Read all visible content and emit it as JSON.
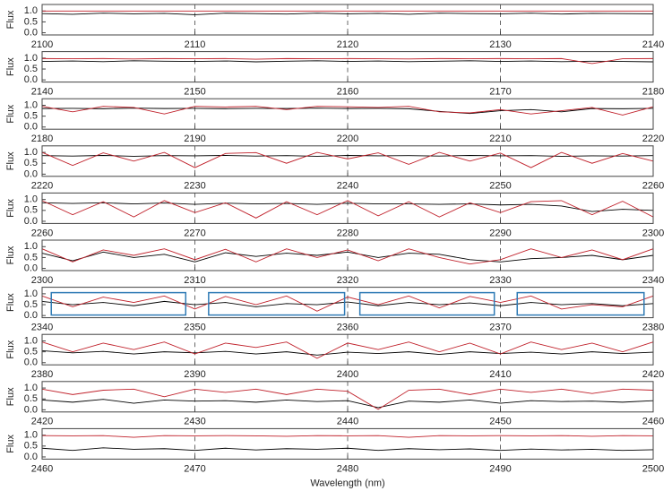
{
  "chart_data": [
    {
      "type": "line",
      "ylabel": "Flux",
      "x": [
        2100,
        2102,
        2104,
        2106,
        2108,
        2110,
        2112,
        2114,
        2116,
        2118,
        2120,
        2122,
        2124,
        2126,
        2128,
        2130,
        2132,
        2134,
        2136,
        2138,
        2140
      ],
      "xlim": [
        2100,
        2140
      ],
      "xticks": [
        2100,
        2110,
        2120,
        2130,
        2140
      ],
      "ylim": [
        -0.1,
        1.3
      ],
      "yticks": [
        {
          "value": 0,
          "label": "0.0"
        },
        {
          "value": 0.5,
          "label": "0.5"
        },
        {
          "value": 1,
          "label": "1.0"
        }
      ],
      "grid": true,
      "series": [
        {
          "color": "#000000",
          "values": [
            0.88,
            0.85,
            0.9,
            0.87,
            0.89,
            0.83,
            0.9,
            0.88,
            0.86,
            0.9,
            0.87,
            0.89,
            0.85,
            0.9,
            0.88,
            0.87,
            0.9,
            0.86,
            0.89,
            0.88,
            0.87
          ]
        },
        {
          "color": "#c0202a",
          "values": [
            1,
            1,
            1,
            1,
            1,
            1,
            1,
            1,
            1,
            1,
            1,
            1,
            1,
            1,
            1,
            1,
            1,
            1,
            1,
            1,
            1
          ]
        }
      ]
    },
    {
      "type": "line",
      "ylabel": "Flux",
      "x": [
        2140,
        2142,
        2144,
        2146,
        2148,
        2150,
        2152,
        2154,
        2156,
        2158,
        2160,
        2162,
        2164,
        2166,
        2168,
        2170,
        2172,
        2174,
        2176,
        2178,
        2180
      ],
      "xlim": [
        2140,
        2180
      ],
      "xticks": [
        2140,
        2150,
        2160,
        2170,
        2180
      ],
      "ylim": [
        -0.1,
        1.3
      ],
      "yticks": [
        {
          "value": 0,
          "label": "0.0"
        },
        {
          "value": 0.5,
          "label": "0.5"
        },
        {
          "value": 1,
          "label": "1.0"
        }
      ],
      "grid": true,
      "series": [
        {
          "color": "#000000",
          "values": [
            0.85,
            0.87,
            0.84,
            0.88,
            0.86,
            0.85,
            0.87,
            0.83,
            0.86,
            0.88,
            0.85,
            0.87,
            0.84,
            0.86,
            0.88,
            0.85,
            0.87,
            0.84,
            0.86,
            0.85,
            0.83
          ]
        },
        {
          "color": "#c0202a",
          "values": [
            0.98,
            0.97,
            0.98,
            0.96,
            0.98,
            0.97,
            0.98,
            0.95,
            0.98,
            0.97,
            0.98,
            0.97,
            0.96,
            0.98,
            0.97,
            0.98,
            0.97,
            0.98,
            0.75,
            0.97,
            0.98
          ]
        }
      ]
    },
    {
      "type": "line",
      "ylabel": "Flux",
      "x": [
        2180,
        2182,
        2184,
        2186,
        2188,
        2190,
        2192,
        2194,
        2196,
        2198,
        2200,
        2202,
        2204,
        2206,
        2208,
        2210,
        2212,
        2214,
        2216,
        2218,
        2220
      ],
      "xlim": [
        2180,
        2220
      ],
      "xticks": [
        2180,
        2190,
        2200,
        2210,
        2220
      ],
      "ylim": [
        -0.1,
        1.3
      ],
      "yticks": [
        {
          "value": 0,
          "label": "0.0"
        },
        {
          "value": 0.5,
          "label": "0.5"
        },
        {
          "value": 1,
          "label": "1.0"
        }
      ],
      "grid": true,
      "series": [
        {
          "color": "#000000",
          "values": [
            0.85,
            0.86,
            0.84,
            0.87,
            0.85,
            0.86,
            0.84,
            0.86,
            0.85,
            0.87,
            0.85,
            0.86,
            0.84,
            0.72,
            0.62,
            0.75,
            0.8,
            0.7,
            0.85,
            0.84,
            0.86
          ]
        },
        {
          "color": "#c0202a",
          "values": [
            0.95,
            0.7,
            0.95,
            0.9,
            0.6,
            0.95,
            0.92,
            0.95,
            0.8,
            0.95,
            0.93,
            0.9,
            0.95,
            0.7,
            0.65,
            0.8,
            0.6,
            0.75,
            0.9,
            0.55,
            0.93
          ]
        }
      ]
    },
    {
      "type": "line",
      "ylabel": "Flux",
      "x": [
        2220,
        2222,
        2224,
        2226,
        2228,
        2230,
        2232,
        2234,
        2236,
        2238,
        2240,
        2242,
        2244,
        2246,
        2248,
        2250,
        2252,
        2254,
        2256,
        2258,
        2260
      ],
      "xlim": [
        2220,
        2260
      ],
      "xticks": [
        2220,
        2230,
        2240,
        2250,
        2260
      ],
      "ylim": [
        -0.1,
        1.3
      ],
      "yticks": [
        {
          "value": 0,
          "label": "0.0"
        },
        {
          "value": 0.5,
          "label": "0.5"
        },
        {
          "value": 1,
          "label": "1.0"
        }
      ],
      "grid": true,
      "series": [
        {
          "color": "#000000",
          "values": [
            0.85,
            0.83,
            0.86,
            0.82,
            0.85,
            0.84,
            0.86,
            0.83,
            0.85,
            0.82,
            0.86,
            0.84,
            0.85,
            0.83,
            0.86,
            0.84,
            0.85,
            0.82,
            0.84,
            0.83,
            0.85
          ]
        },
        {
          "color": "#c0202a",
          "values": [
            1.0,
            0.4,
            0.98,
            0.6,
            1.0,
            0.3,
            0.95,
            0.99,
            0.5,
            1.0,
            0.7,
            0.98,
            0.45,
            1.0,
            0.6,
            0.97,
            0.3,
            1.0,
            0.5,
            0.95,
            0.6
          ]
        }
      ]
    },
    {
      "type": "line",
      "ylabel": "Flux",
      "x": [
        2260,
        2262,
        2264,
        2266,
        2268,
        2270,
        2272,
        2274,
        2276,
        2278,
        2280,
        2282,
        2284,
        2286,
        2288,
        2290,
        2292,
        2294,
        2296,
        2298,
        2300
      ],
      "xlim": [
        2260,
        2300
      ],
      "xticks": [
        2260,
        2270,
        2280,
        2290,
        2300
      ],
      "ylim": [
        -0.1,
        1.3
      ],
      "yticks": [
        {
          "value": 0,
          "label": "0.0"
        },
        {
          "value": 0.5,
          "label": "0.5"
        },
        {
          "value": 1,
          "label": "1.0"
        }
      ],
      "grid": true,
      "series": [
        {
          "color": "#000000",
          "values": [
            0.85,
            0.82,
            0.85,
            0.8,
            0.84,
            0.78,
            0.83,
            0.8,
            0.82,
            0.78,
            0.83,
            0.8,
            0.8,
            0.78,
            0.8,
            0.75,
            0.78,
            0.7,
            0.45,
            0.55,
            0.5
          ]
        },
        {
          "color": "#c0202a",
          "values": [
            0.95,
            0.3,
            0.9,
            0.2,
            0.95,
            0.4,
            0.85,
            0.15,
            0.9,
            0.3,
            0.95,
            0.25,
            0.9,
            0.2,
            0.85,
            0.4,
            0.9,
            0.95,
            0.3,
            0.92,
            0.2
          ]
        }
      ]
    },
    {
      "type": "line",
      "ylabel": "Flux",
      "x": [
        2300,
        2302,
        2304,
        2306,
        2308,
        2310,
        2312,
        2314,
        2316,
        2318,
        2320,
        2322,
        2324,
        2326,
        2328,
        2330,
        2332,
        2334,
        2336,
        2338,
        2340
      ],
      "xlim": [
        2300,
        2340
      ],
      "xticks": [
        2300,
        2310,
        2320,
        2330,
        2340
      ],
      "ylim": [
        -0.1,
        1.3
      ],
      "yticks": [
        {
          "value": 0,
          "label": "0.0"
        },
        {
          "value": 0.5,
          "label": "0.5"
        },
        {
          "value": 1,
          "label": "1.0"
        }
      ],
      "grid": true,
      "series": [
        {
          "color": "#000000",
          "values": [
            0.7,
            0.35,
            0.75,
            0.5,
            0.65,
            0.3,
            0.72,
            0.55,
            0.7,
            0.6,
            0.75,
            0.5,
            0.7,
            0.65,
            0.4,
            0.3,
            0.45,
            0.5,
            0.6,
            0.4,
            0.6
          ]
        },
        {
          "color": "#c0202a",
          "values": [
            0.9,
            0.3,
            0.85,
            0.6,
            0.9,
            0.4,
            0.88,
            0.3,
            0.9,
            0.5,
            0.85,
            0.35,
            0.9,
            0.5,
            0.2,
            0.4,
            0.9,
            0.5,
            0.85,
            0.4,
            0.9
          ]
        }
      ]
    },
    {
      "type": "line",
      "ylabel": "Flux",
      "x": [
        2340,
        2342,
        2344,
        2346,
        2348,
        2350,
        2352,
        2354,
        2356,
        2358,
        2360,
        2362,
        2364,
        2366,
        2368,
        2370,
        2372,
        2374,
        2376,
        2378,
        2380
      ],
      "xlim": [
        2340,
        2380
      ],
      "xticks": [
        2340,
        2350,
        2360,
        2370,
        2380
      ],
      "ylim": [
        -0.1,
        1.3
      ],
      "yticks": [
        {
          "value": 0,
          "label": "0.0"
        },
        {
          "value": 0.5,
          "label": "0.5"
        },
        {
          "value": 1,
          "label": "1.0"
        }
      ],
      "grid": true,
      "series": [
        {
          "color": "#000000",
          "values": [
            0.65,
            0.5,
            0.6,
            0.45,
            0.65,
            0.5,
            0.6,
            0.4,
            0.55,
            0.5,
            0.62,
            0.45,
            0.6,
            0.5,
            0.58,
            0.45,
            0.6,
            0.5,
            0.55,
            0.45,
            0.55
          ]
        },
        {
          "color": "#c0202a",
          "values": [
            0.9,
            0.4,
            0.85,
            0.6,
            0.9,
            0.3,
            0.88,
            0.5,
            0.9,
            0.2,
            0.85,
            0.5,
            0.9,
            0.35,
            0.88,
            0.6,
            0.9,
            0.3,
            0.5,
            0.4,
            0.9
          ]
        }
      ],
      "highlights": {
        "color": "#2f7bb5",
        "ranges": [
          [
            2340.6,
            2349.4
          ],
          [
            2350.9,
            2359.8
          ],
          [
            2360.8,
            2369.6
          ],
          [
            2371.1,
            2379.4
          ]
        ]
      }
    },
    {
      "type": "line",
      "ylabel": "Flux",
      "x": [
        2380,
        2382,
        2384,
        2386,
        2388,
        2390,
        2392,
        2394,
        2396,
        2398,
        2400,
        2402,
        2404,
        2406,
        2408,
        2410,
        2412,
        2414,
        2416,
        2418,
        2420
      ],
      "xlim": [
        2380,
        2420
      ],
      "xticks": [
        2380,
        2390,
        2400,
        2410,
        2420
      ],
      "ylim": [
        -0.1,
        1.3
      ],
      "yticks": [
        {
          "value": 0,
          "label": "0.0"
        },
        {
          "value": 0.5,
          "label": "0.5"
        },
        {
          "value": 1,
          "label": "1.0"
        }
      ],
      "grid": true,
      "series": [
        {
          "color": "#000000",
          "values": [
            0.55,
            0.45,
            0.52,
            0.4,
            0.5,
            0.45,
            0.52,
            0.4,
            0.5,
            0.35,
            0.48,
            0.42,
            0.5,
            0.38,
            0.5,
            0.42,
            0.48,
            0.4,
            0.5,
            0.42,
            0.48
          ]
        },
        {
          "color": "#c0202a",
          "values": [
            0.95,
            0.5,
            0.9,
            0.6,
            0.95,
            0.4,
            0.9,
            0.7,
            0.95,
            0.2,
            0.9,
            0.6,
            0.95,
            0.5,
            0.9,
            0.4,
            0.95,
            0.6,
            0.9,
            0.5,
            0.95
          ]
        }
      ]
    },
    {
      "type": "line",
      "ylabel": "Flux",
      "x": [
        2420,
        2422,
        2424,
        2426,
        2428,
        2430,
        2432,
        2434,
        2436,
        2438,
        2440,
        2442,
        2444,
        2446,
        2448,
        2450,
        2452,
        2454,
        2456,
        2458,
        2460
      ],
      "xlim": [
        2420,
        2460
      ],
      "xticks": [
        2420,
        2430,
        2440,
        2450,
        2460
      ],
      "ylim": [
        -0.1,
        1.3
      ],
      "yticks": [
        {
          "value": 0,
          "label": "0.0"
        },
        {
          "value": 0.5,
          "label": "0.5"
        },
        {
          "value": 1,
          "label": "1.0"
        }
      ],
      "grid": true,
      "series": [
        {
          "color": "#000000",
          "values": [
            0.45,
            0.35,
            0.48,
            0.3,
            0.45,
            0.4,
            0.42,
            0.35,
            0.45,
            0.38,
            0.42,
            0.1,
            0.4,
            0.35,
            0.45,
            0.3,
            0.42,
            0.38,
            0.4,
            0.35,
            0.42
          ]
        },
        {
          "color": "#c0202a",
          "values": [
            0.95,
            0.7,
            0.9,
            0.95,
            0.6,
            0.95,
            0.8,
            0.95,
            0.7,
            0.95,
            0.85,
            0.02,
            0.9,
            0.95,
            0.7,
            0.95,
            0.8,
            0.95,
            0.75,
            0.95,
            0.9
          ]
        }
      ]
    },
    {
      "type": "line",
      "ylabel": "Flux",
      "xlabel": "Wavelength (nm)",
      "x": [
        2460,
        2462,
        2464,
        2466,
        2468,
        2470,
        2472,
        2474,
        2476,
        2478,
        2480,
        2482,
        2484,
        2486,
        2488,
        2490,
        2492,
        2494,
        2496,
        2498,
        2500
      ],
      "xlim": [
        2460,
        2500
      ],
      "xticks": [
        2460,
        2470,
        2480,
        2490,
        2500
      ],
      "ylim": [
        -0.1,
        1.3
      ],
      "yticks": [
        {
          "value": 0,
          "label": "0.0"
        },
        {
          "value": 0.5,
          "label": "0.5"
        },
        {
          "value": 1,
          "label": "1.0"
        }
      ],
      "grid": true,
      "series": [
        {
          "color": "#000000",
          "values": [
            0.4,
            0.3,
            0.42,
            0.35,
            0.38,
            0.3,
            0.4,
            0.32,
            0.38,
            0.35,
            0.4,
            0.3,
            0.38,
            0.33,
            0.37,
            0.3,
            0.36,
            0.32,
            0.35,
            0.3,
            0.33
          ]
        },
        {
          "color": "#c0202a",
          "values": [
            0.98,
            0.97,
            0.98,
            0.9,
            0.98,
            0.97,
            0.98,
            0.97,
            0.95,
            0.98,
            0.97,
            0.98,
            0.9,
            0.98,
            0.97,
            0.98,
            0.97,
            0.98,
            0.95,
            0.98,
            0.97
          ]
        }
      ]
    }
  ]
}
